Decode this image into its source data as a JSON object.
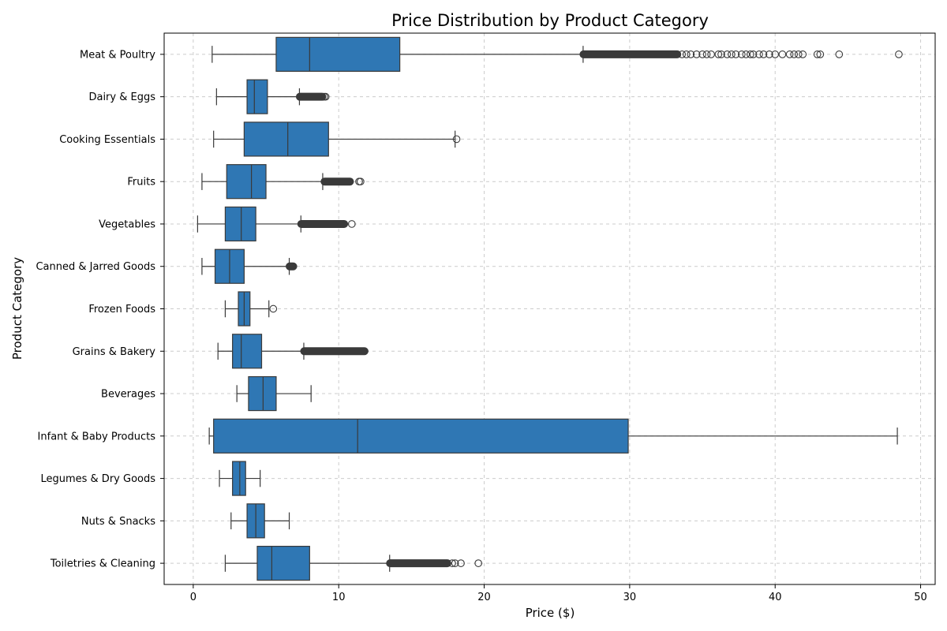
{
  "chart_data": {
    "type": "boxplot",
    "orientation": "horizontal",
    "title": "Price Distribution by Product Category",
    "xlabel": "Price ($)",
    "ylabel": "Product Category",
    "xlim": [
      -2,
      51
    ],
    "xticks": [
      0,
      10,
      20,
      30,
      40,
      50
    ],
    "grid": true,
    "box_color": "#2f77b4",
    "line_color": "#3a3a3a",
    "categories": [
      {
        "name": "Meat & Poultry",
        "whisker_low": 1.3,
        "q1": 5.7,
        "median": 8.0,
        "q3": 14.2,
        "whisker_high": 26.8,
        "outliers_dense": [
          26.8,
          33.3
        ],
        "outliers": [
          33.6,
          33.9,
          34.2,
          34.6,
          35.0,
          35.3,
          35.6,
          36.1,
          36.3,
          36.7,
          37.0,
          37.3,
          37.7,
          38.0,
          38.3,
          38.5,
          38.9,
          39.2,
          39.6,
          40.0,
          40.5,
          41.0,
          41.3,
          41.6,
          41.9,
          42.9,
          43.1,
          44.4,
          48.5
        ]
      },
      {
        "name": "Dairy & Eggs",
        "whisker_low": 1.6,
        "q1": 3.7,
        "median": 4.2,
        "q3": 5.1,
        "whisker_high": 7.3,
        "outliers_dense": [
          7.3,
          8.9
        ],
        "outliers": [
          9.0,
          9.1
        ]
      },
      {
        "name": "Cooking Essentials",
        "whisker_low": 1.4,
        "q1": 3.5,
        "median": 6.5,
        "q3": 9.3,
        "whisker_high": 18.0,
        "outliers_dense": [],
        "outliers": [
          18.1
        ]
      },
      {
        "name": "Fruits",
        "whisker_low": 0.6,
        "q1": 2.3,
        "median": 4.0,
        "q3": 5.0,
        "whisker_high": 8.9,
        "outliers_dense": [
          9.0,
          10.8
        ],
        "outliers": [
          11.4,
          11.5
        ]
      },
      {
        "name": "Vegetables",
        "whisker_low": 0.3,
        "q1": 2.2,
        "median": 3.3,
        "q3": 4.3,
        "whisker_high": 7.4,
        "outliers_dense": [
          7.4,
          10.4
        ],
        "outliers": [
          10.9
        ]
      },
      {
        "name": "Canned & Jarred Goods",
        "whisker_low": 0.6,
        "q1": 1.5,
        "median": 2.5,
        "q3": 3.5,
        "whisker_high": 6.6,
        "outliers_dense": [
          6.6,
          6.9
        ],
        "outliers": []
      },
      {
        "name": "Frozen Foods",
        "whisker_low": 2.2,
        "q1": 3.1,
        "median": 3.5,
        "q3": 3.9,
        "whisker_high": 5.2,
        "outliers_dense": [],
        "outliers": [
          5.5
        ]
      },
      {
        "name": "Grains & Bakery",
        "whisker_low": 1.7,
        "q1": 2.7,
        "median": 3.3,
        "q3": 4.7,
        "whisker_high": 7.6,
        "outliers_dense": [
          7.6,
          11.8
        ],
        "outliers": []
      },
      {
        "name": "Beverages",
        "whisker_low": 3.0,
        "q1": 3.8,
        "median": 4.8,
        "q3": 5.7,
        "whisker_high": 8.1,
        "outliers_dense": [],
        "outliers": []
      },
      {
        "name": "Infant & Baby Products",
        "whisker_low": 1.1,
        "q1": 1.4,
        "median": 11.3,
        "q3": 29.9,
        "whisker_high": 48.4,
        "outliers_dense": [],
        "outliers": []
      },
      {
        "name": "Legumes & Dry Goods",
        "whisker_low": 1.8,
        "q1": 2.7,
        "median": 3.2,
        "q3": 3.6,
        "whisker_high": 4.6,
        "outliers_dense": [],
        "outliers": []
      },
      {
        "name": "Nuts & Snacks",
        "whisker_low": 2.6,
        "q1": 3.7,
        "median": 4.3,
        "q3": 4.9,
        "whisker_high": 6.6,
        "outliers_dense": [],
        "outliers": []
      },
      {
        "name": "Toiletries & Cleaning",
        "whisker_low": 2.2,
        "q1": 4.4,
        "median": 5.4,
        "q3": 8.0,
        "whisker_high": 13.5,
        "outliers_dense": [
          13.5,
          17.5
        ],
        "outliers": [
          17.8,
          18.0,
          18.4,
          19.6
        ]
      }
    ]
  }
}
